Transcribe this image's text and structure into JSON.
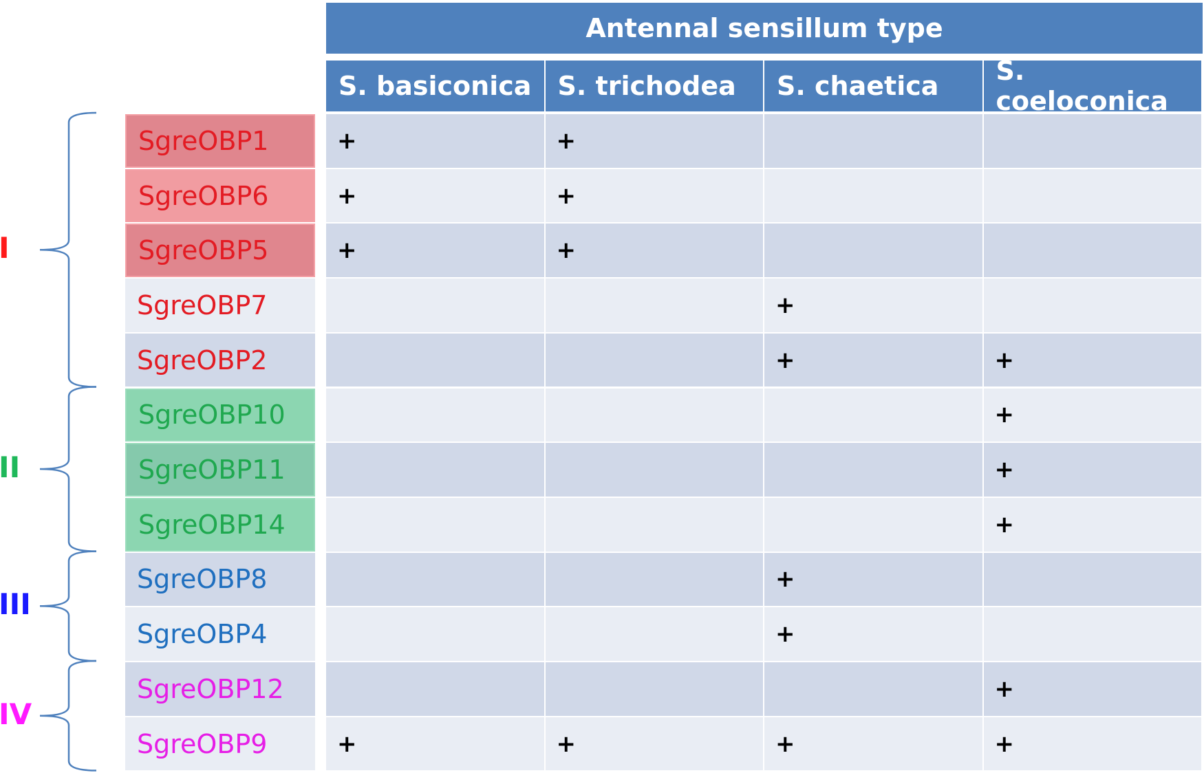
{
  "chart_data": {
    "type": "table",
    "header": "Antennal sensillum type",
    "columns": [
      "S. basiconica",
      "S. trichodea",
      "S. chaetica",
      "S. coeloconica"
    ],
    "mark": "+",
    "rows": [
      {
        "gene": "SgreOBP1",
        "group": 0,
        "highlight": true,
        "marks": [
          true,
          true,
          false,
          false
        ]
      },
      {
        "gene": "SgreOBP6",
        "group": 0,
        "highlight": true,
        "marks": [
          true,
          true,
          false,
          false
        ]
      },
      {
        "gene": "SgreOBP5",
        "group": 0,
        "highlight": true,
        "marks": [
          true,
          true,
          false,
          false
        ]
      },
      {
        "gene": "SgreOBP7",
        "group": 0,
        "highlight": false,
        "marks": [
          false,
          false,
          true,
          false
        ]
      },
      {
        "gene": "SgreOBP2",
        "group": 0,
        "highlight": false,
        "marks": [
          false,
          false,
          true,
          true
        ]
      },
      {
        "gene": "SgreOBP10",
        "group": 1,
        "highlight": true,
        "marks": [
          false,
          false,
          false,
          true
        ]
      },
      {
        "gene": "SgreOBP11",
        "group": 1,
        "highlight": true,
        "marks": [
          false,
          false,
          false,
          true
        ]
      },
      {
        "gene": "SgreOBP14",
        "group": 1,
        "highlight": true,
        "marks": [
          false,
          false,
          false,
          true
        ]
      },
      {
        "gene": "SgreOBP8",
        "group": 2,
        "highlight": false,
        "marks": [
          false,
          false,
          true,
          false
        ]
      },
      {
        "gene": "SgreOBP4",
        "group": 2,
        "highlight": false,
        "marks": [
          false,
          false,
          true,
          false
        ]
      },
      {
        "gene": "SgreOBP12",
        "group": 3,
        "highlight": false,
        "marks": [
          false,
          false,
          false,
          true
        ]
      },
      {
        "gene": "SgreOBP9",
        "group": 3,
        "highlight": false,
        "marks": [
          true,
          true,
          true,
          true
        ]
      }
    ],
    "groups": [
      {
        "label": "I",
        "color": "#ff1a1a",
        "text_color": "#e31b23",
        "first_row": 0,
        "last_row": 4
      },
      {
        "label": "II",
        "color": "#1fb85a",
        "text_color": "#1fa84f",
        "first_row": 5,
        "last_row": 7
      },
      {
        "label": "III",
        "color": "#1a1aff",
        "text_color": "#1f6fbf",
        "first_row": 8,
        "last_row": 9
      },
      {
        "label": "IV",
        "color": "#ff1aff",
        "text_color": "#e61ee6",
        "first_row": 10,
        "last_row": 11
      }
    ],
    "colors": {
      "header": "#4f81bd",
      "row_odd": "#d0d8e8",
      "row_even": "#e9edf4",
      "group_I_highlight": [
        "#e0868e",
        "#f19ca1"
      ],
      "group_II_highlight": [
        "#8cd6b1",
        "#85c9ac"
      ],
      "brace": "#4f81bd"
    }
  }
}
